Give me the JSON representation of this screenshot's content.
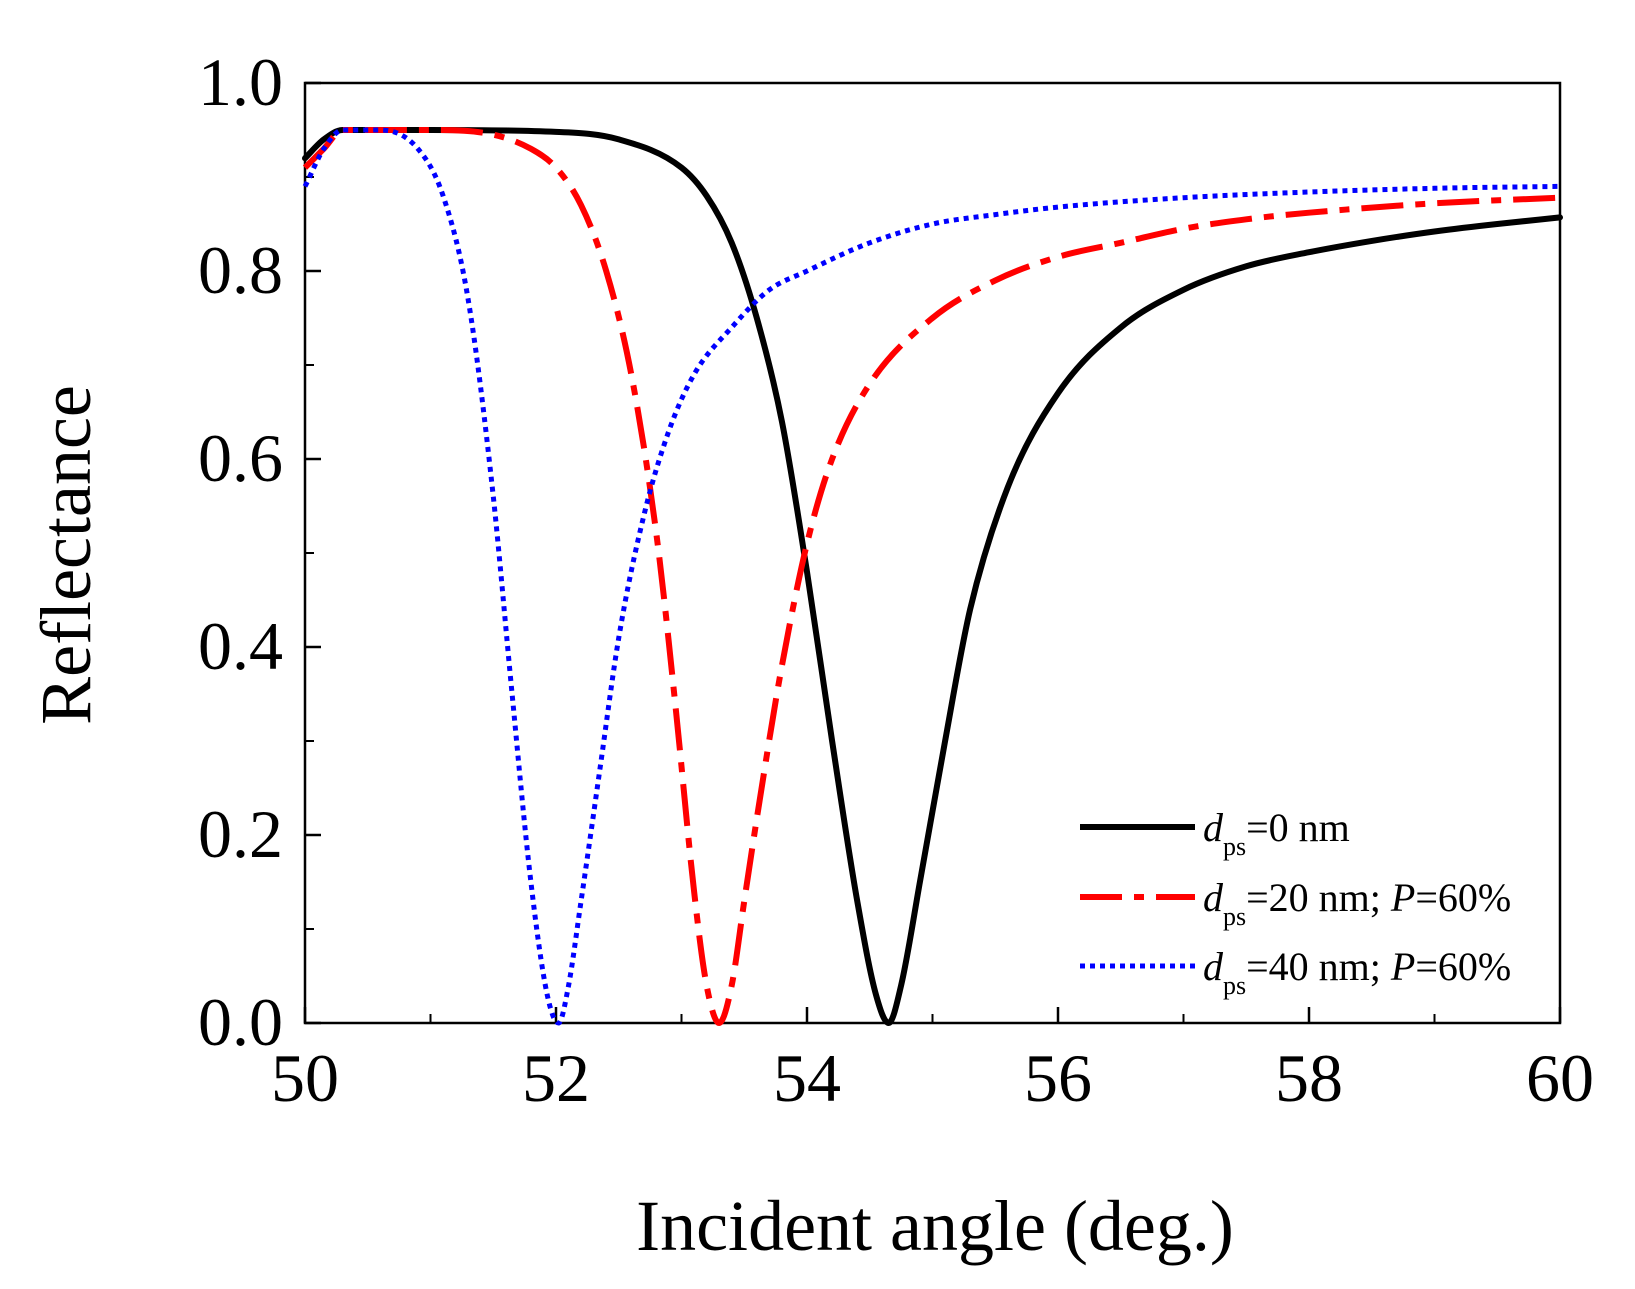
{
  "chart_data": {
    "type": "line",
    "title": "",
    "xlabel": "Incident angle (deg.)",
    "ylabel": "Reflectance",
    "xlim": [
      50,
      60
    ],
    "ylim": [
      0.0,
      1.0
    ],
    "xticks": [
      50,
      52,
      54,
      56,
      58,
      60
    ],
    "xtick_labels": [
      "50",
      "52",
      "54",
      "56",
      "58",
      "60"
    ],
    "yticks": [
      0.0,
      0.2,
      0.4,
      0.6,
      0.8,
      1.0
    ],
    "ytick_labels": [
      "0.0",
      "0.2",
      "0.4",
      "0.6",
      "0.8",
      "1.0"
    ],
    "grid": false,
    "legend_position": "bottom-right",
    "series": [
      {
        "name": "d_ps=0 nm",
        "legend": {
          "d": "d",
          "sub": "ps",
          "rest": "=0 nm",
          "p": "",
          "pval": ""
        },
        "color": "#000000",
        "style": "solid",
        "x": [
          50.0,
          50.15,
          50.3,
          51.0,
          52.0,
          52.5,
          53.0,
          53.2,
          53.4,
          53.6,
          53.8,
          54.0,
          54.2,
          54.4,
          54.55,
          54.65,
          54.75,
          54.9,
          55.1,
          55.3,
          55.6,
          56.0,
          56.5,
          57.0,
          57.5,
          58.0,
          58.5,
          59.0,
          59.5,
          60.0
        ],
        "y": [
          0.92,
          0.94,
          0.95,
          0.95,
          0.948,
          0.94,
          0.91,
          0.88,
          0.83,
          0.75,
          0.64,
          0.48,
          0.3,
          0.13,
          0.03,
          0.0,
          0.04,
          0.15,
          0.3,
          0.44,
          0.57,
          0.67,
          0.74,
          0.78,
          0.805,
          0.82,
          0.832,
          0.842,
          0.85,
          0.857
        ]
      },
      {
        "name": "d_ps=20 nm; P=60%",
        "legend": {
          "d": "d",
          "sub": "ps",
          "rest": "=20 nm; ",
          "p": "P",
          "pval": "=60%"
        },
        "color": "#ff0000",
        "style": "dashdot",
        "x": [
          50.0,
          50.15,
          50.3,
          51.0,
          51.5,
          51.8,
          52.0,
          52.2,
          52.4,
          52.6,
          52.8,
          52.95,
          53.1,
          53.2,
          53.3,
          53.4,
          53.5,
          53.65,
          53.8,
          54.0,
          54.2,
          54.5,
          55.0,
          55.5,
          56.0,
          56.5,
          57.0,
          57.5,
          58.0,
          59.0,
          60.0
        ],
        "y": [
          0.91,
          0.93,
          0.95,
          0.95,
          0.945,
          0.93,
          0.91,
          0.87,
          0.8,
          0.69,
          0.52,
          0.34,
          0.14,
          0.04,
          0.0,
          0.04,
          0.13,
          0.26,
          0.38,
          0.51,
          0.6,
          0.68,
          0.75,
          0.79,
          0.815,
          0.83,
          0.845,
          0.855,
          0.862,
          0.872,
          0.878
        ]
      },
      {
        "name": "d_ps=40 nm; P=60%",
        "legend": {
          "d": "d",
          "sub": "ps",
          "rest": "=40 nm; ",
          "p": "P",
          "pval": "=60%"
        },
        "color": "#0000ff",
        "style": "dotted",
        "x": [
          50.0,
          50.15,
          50.3,
          50.6,
          50.9,
          51.1,
          51.3,
          51.5,
          51.65,
          51.8,
          51.93,
          52.02,
          52.1,
          52.2,
          52.35,
          52.5,
          52.7,
          52.9,
          53.1,
          53.4,
          53.7,
          54.0,
          54.5,
          55.0,
          55.5,
          56.0,
          57.0,
          58.0,
          59.0,
          60.0
        ],
        "y": [
          0.89,
          0.93,
          0.95,
          0.95,
          0.93,
          0.88,
          0.77,
          0.56,
          0.35,
          0.15,
          0.03,
          0.0,
          0.04,
          0.13,
          0.27,
          0.41,
          0.54,
          0.63,
          0.69,
          0.74,
          0.78,
          0.8,
          0.83,
          0.85,
          0.86,
          0.868,
          0.878,
          0.884,
          0.888,
          0.89
        ]
      }
    ]
  }
}
